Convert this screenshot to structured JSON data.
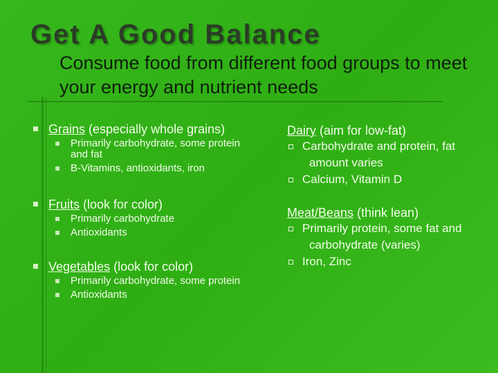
{
  "header": {
    "title": "Get A Good Balance",
    "subtitle": "Consume food from different food groups to meet your energy and nutrient needs"
  },
  "left": [
    {
      "name": "Grains",
      "note": "(especially whole grains)",
      "items": [
        "Primarily carbohydrate, some protein and fat",
        "B-Vitamins, antioxidants, iron"
      ]
    },
    {
      "name": "Fruits",
      "note": "(look for color)",
      "items": [
        "Primarily carbohydrate",
        "Antioxidants"
      ]
    },
    {
      "name": "Vegetables",
      "note": "(look for color)",
      "items": [
        "Primarily carbohydrate, some protein",
        "Antioxidants"
      ]
    }
  ],
  "right": [
    {
      "name": "Dairy",
      "note": "(aim for low-fat)",
      "items": [
        "Carbohydrate and protein, fat amount varies",
        "Calcium, Vitamin D"
      ]
    },
    {
      "name": "Meat/Beans",
      "note": "(think lean)",
      "items": [
        "Primarily protein, some fat and carbohydrate (varies)",
        "Iron, Zinc"
      ]
    }
  ]
}
